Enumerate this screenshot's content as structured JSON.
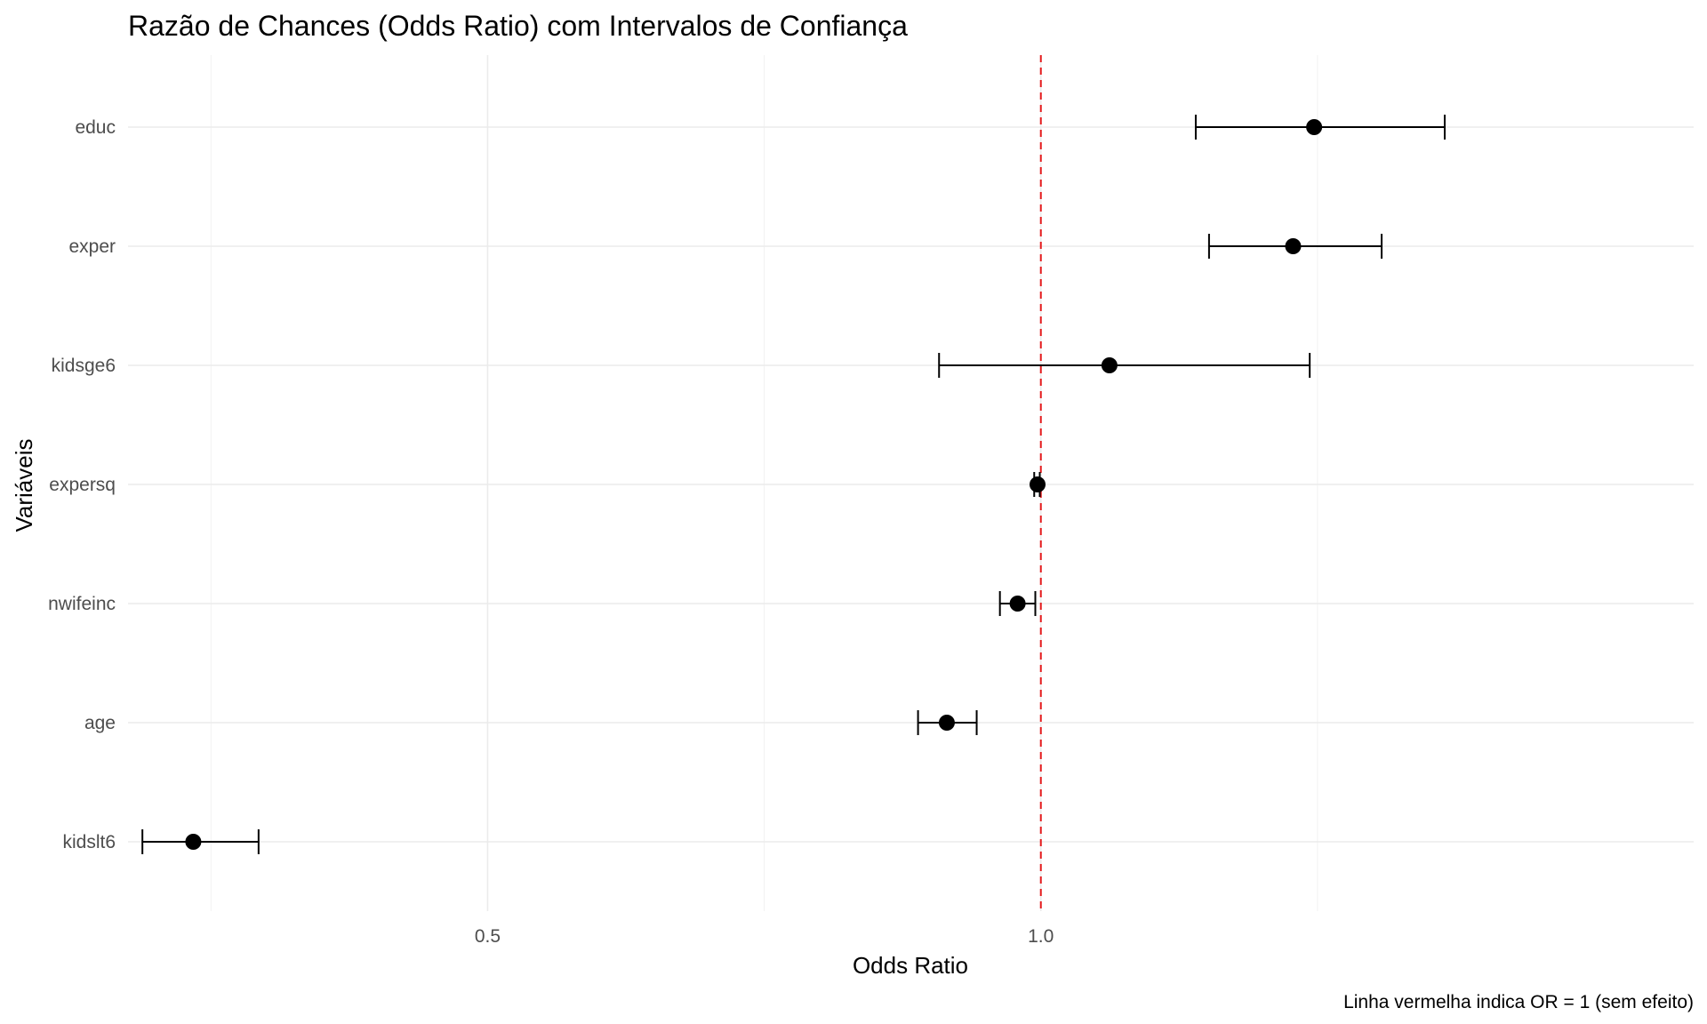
{
  "chart_data": {
    "type": "scatter",
    "title": "Razão de Chances (Odds Ratio) com Intervalos de Confiança",
    "xlabel": "Odds Ratio",
    "ylabel": "Variáveis",
    "caption": "Linha vermelha indica OR = 1 (sem efeito)",
    "xlim": [
      0.175,
      1.59
    ],
    "xticks": [
      {
        "value": 0.5,
        "label": "0.5"
      },
      {
        "value": 1.0,
        "label": "1.0"
      }
    ],
    "xgrid_minor": [
      0.25,
      0.75,
      1.25
    ],
    "reference_line": {
      "x": 1.0,
      "color": "#e41a1c",
      "style": "dashed"
    },
    "grid": true,
    "legend": "none",
    "categories": [
      "educ",
      "exper",
      "kidsge6",
      "expersq",
      "nwifeinc",
      "age",
      "kidslt6"
    ],
    "series": [
      {
        "points": [
          {
            "label": "educ",
            "or": 1.247,
            "lower": 1.14,
            "upper": 1.365
          },
          {
            "label": "exper",
            "or": 1.228,
            "lower": 1.152,
            "upper": 1.308
          },
          {
            "label": "kidsge6",
            "or": 1.062,
            "lower": 0.908,
            "upper": 1.243
          },
          {
            "label": "expersq",
            "or": 0.997,
            "lower": 0.994,
            "upper": 0.999
          },
          {
            "label": "nwifeinc",
            "or": 0.979,
            "lower": 0.963,
            "upper": 0.995
          },
          {
            "label": "age",
            "or": 0.915,
            "lower": 0.889,
            "upper": 0.942
          },
          {
            "label": "kidslt6",
            "or": 0.234,
            "lower": 0.188,
            "upper": 0.293
          }
        ]
      }
    ]
  }
}
